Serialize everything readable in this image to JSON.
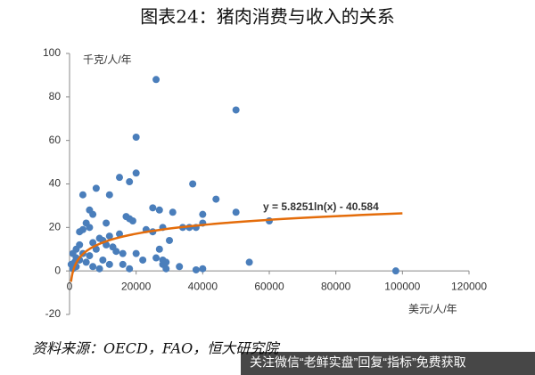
{
  "chart_data": {
    "type": "scatter",
    "title": "图表24：猪肉消费与收入的关系",
    "y_label": "千克/人/年",
    "x_label": "美元/人/年",
    "source": "资料来源：OECD，FAO，恒大研究院",
    "watermark": "关注微信“老鲜实盘”回复“指标”免费获取",
    "xlim": [
      0,
      120000
    ],
    "xticks": [
      0,
      20000,
      40000,
      60000,
      80000,
      100000,
      120000
    ],
    "ylim": [
      -20,
      100
    ],
    "yticks": [
      -20,
      0,
      20,
      40,
      60,
      80,
      100
    ],
    "color": "#4a7ebb",
    "x": [
      26000,
      50000,
      20000,
      20000,
      18000,
      15000,
      37000,
      8000,
      4000,
      12000,
      44000,
      25000,
      27000,
      31000,
      17000,
      18000,
      19000,
      11000,
      7000,
      5000,
      6000,
      50000,
      60000,
      40000,
      36000,
      38000,
      28000,
      23000,
      25000,
      15000,
      12000,
      9000,
      10000,
      3000,
      2000,
      1000,
      3000,
      5000,
      2000,
      1000,
      500,
      8000,
      6000,
      4000,
      14000,
      16000,
      20000,
      22000,
      26000,
      28000,
      29000,
      33000,
      40000,
      54000,
      98000,
      7000,
      12000,
      18000,
      10000,
      13000,
      11000,
      6000,
      4000,
      3000,
      7000,
      2000,
      1500,
      9000,
      16000,
      27000,
      30000,
      34000,
      40000,
      28000,
      29000,
      38000
    ],
    "values": [
      88,
      74,
      61.5,
      45,
      41,
      43,
      40,
      38,
      35,
      35,
      33,
      29,
      28,
      27,
      25,
      24,
      23,
      22,
      26,
      22,
      28,
      27,
      23,
      22,
      20,
      20,
      20,
      19,
      18,
      17,
      16,
      15,
      14,
      12,
      10,
      8,
      5,
      4,
      2,
      1,
      3,
      10,
      7,
      8,
      9,
      8,
      8,
      5,
      6,
      3,
      1,
      2,
      1,
      4,
      0,
      2,
      3,
      1,
      5,
      11,
      12,
      20,
      19,
      18,
      13,
      6,
      4,
      1,
      3,
      10,
      14,
      20,
      26,
      5,
      4,
      0.5
    ],
    "trendline": {
      "equation": "y = 5.8251ln(x) - 40.584",
      "slope": 5.8251,
      "intercept": -40.584,
      "x_range": [
        450,
        100000
      ],
      "color": "#e46c0a"
    }
  }
}
